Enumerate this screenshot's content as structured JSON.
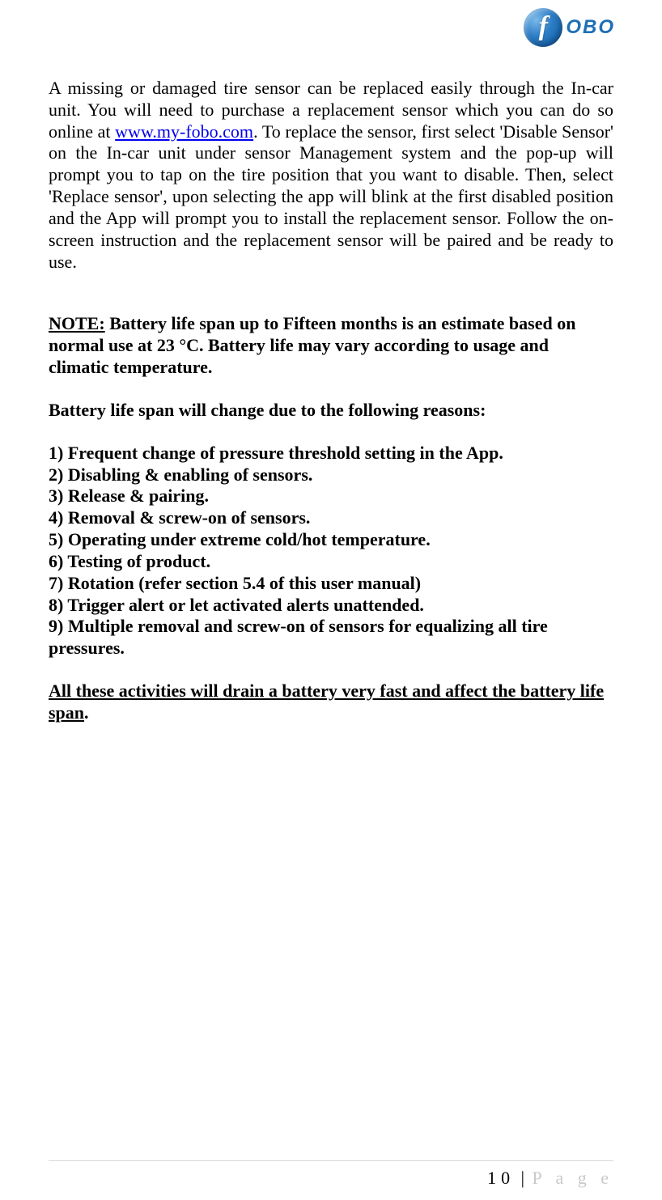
{
  "logo": {
    "badge_letter": "f",
    "word": "OBO"
  },
  "para1": {
    "t1": "A missing or damaged tire sensor can be replaced easily through the In-car unit. You will need to purchase a replacement sensor which you can do so online at ",
    "link": "www.my-fobo.com",
    "t2": ". To replace the sensor, first select 'Disable Sensor' on the In-car unit under sensor Management system and the pop-up will prompt you to tap on the tire position that you want to disable.  Then, select 'Replace sensor', upon selecting the app will blink at the first disabled position and the App will prompt you to install the replacement sensor. Follow the on-screen instruction and the replacement sensor will be paired and be ready to use."
  },
  "note": {
    "label": "NOTE:",
    "text": " Battery life span up to Fifteen months is an estimate based on normal use at 23 °C. Battery life may vary according to usage and climatic temperature."
  },
  "sub": "Battery life span will change due to the following reasons:",
  "list": [
    "1) Frequent change of pressure threshold setting in the App.",
    "2) Disabling & enabling of sensors.",
    "3) Release & pairing.",
    "4) Removal & screw-on of sensors.",
    "5) Operating under extreme cold/hot temperature.",
    "6) Testing of product.",
    "7) Rotation (refer section 5.4 of this user manual)",
    "8) Trigger alert or let activated alerts unattended.",
    "9) Multiple removal and screw-on of sensors for equalizing all tire pressures."
  ],
  "closing": {
    "underlined": "All these activities will drain a battery very fast and affect the battery life span",
    "tail": "."
  },
  "footer": {
    "num": "10",
    "bar": " | ",
    "word": "P a g e"
  }
}
